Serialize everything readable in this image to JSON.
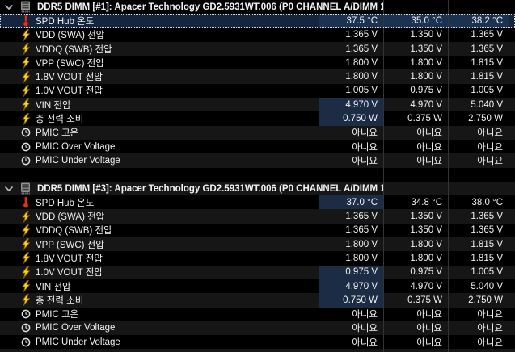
{
  "theme": {
    "bg": "#000000",
    "row_alt_bg": "#161616",
    "grid_line": "#343434",
    "text": "#f2f2f2",
    "selected_row_bg": "#13263e",
    "selected_value_cell_bg": "#1b3251",
    "changed_value_cell_bg": "#1b2c44",
    "selection_border": "#dadada",
    "bolt_color": "#ffd21e",
    "thermometer_color": "#e03222",
    "clock_color": "#e2e2e2",
    "chevron_color": "#b8b8b8",
    "dimm_icon_color": "#8f8f8f"
  },
  "sections": [
    {
      "title": "DDR5 DIMM [#1]: Apacer Technology GD2.5931WT.006 (P0 CHANNEL A/DIMM 1)",
      "collapse_icon": "chevron-down",
      "header_icon": "dimm-module",
      "rows": [
        {
          "icon": "thermometer",
          "label": "SPD Hub 온도",
          "current": "37.5 °C",
          "min": "35.0 °C",
          "max": "38.2 °C",
          "selected": true
        },
        {
          "icon": "bolt",
          "label": "VDD (SWA) 전압",
          "current": "1.365 V",
          "min": "1.350 V",
          "max": "1.365 V"
        },
        {
          "icon": "bolt",
          "label": "VDDQ (SWB) 전압",
          "current": "1.365 V",
          "min": "1.350 V",
          "max": "1.365 V"
        },
        {
          "icon": "bolt",
          "label": "VPP (SWC) 전압",
          "current": "1.800 V",
          "min": "1.800 V",
          "max": "1.815 V"
        },
        {
          "icon": "bolt",
          "label": "1.8V VOUT 전압",
          "current": "1.800 V",
          "min": "1.800 V",
          "max": "1.815 V"
        },
        {
          "icon": "bolt",
          "label": "1.0V VOUT 전압",
          "current": "1.005 V",
          "min": "0.975 V",
          "max": "1.005 V"
        },
        {
          "icon": "bolt",
          "label": "VIN 전압",
          "current": "4.970 V",
          "min": "4.970 V",
          "max": "5.040 V",
          "current_changed": true
        },
        {
          "icon": "bolt",
          "label": "총 전력 소비",
          "current": "0.750 W",
          "min": "0.375 W",
          "max": "2.750 W",
          "current_changed": true
        },
        {
          "icon": "clock",
          "label": "PMIC 고온",
          "current": "아니요",
          "min": "아니요",
          "max": "아니요"
        },
        {
          "icon": "clock",
          "label": "PMIC Over Voltage",
          "current": "아니요",
          "min": "아니요",
          "max": "아니요"
        },
        {
          "icon": "clock",
          "label": "PMIC Under Voltage",
          "current": "아니요",
          "min": "아니요",
          "max": "아니요"
        }
      ]
    },
    {
      "title": "DDR5 DIMM [#3]: Apacer Technology GD2.5931WT.006 (P0 CHANNEL A/DIMM 1)",
      "collapse_icon": "chevron-down",
      "header_icon": "dimm-module",
      "rows": [
        {
          "icon": "thermometer",
          "label": "SPD Hub 온도",
          "current": "37.0 °C",
          "min": "34.8 °C",
          "max": "38.0 °C",
          "current_changed": true
        },
        {
          "icon": "bolt",
          "label": "VDD (SWA) 전압",
          "current": "1.365 V",
          "min": "1.350 V",
          "max": "1.365 V"
        },
        {
          "icon": "bolt",
          "label": "VDDQ (SWB) 전압",
          "current": "1.365 V",
          "min": "1.350 V",
          "max": "1.365 V"
        },
        {
          "icon": "bolt",
          "label": "VPP (SWC) 전압",
          "current": "1.800 V",
          "min": "1.800 V",
          "max": "1.815 V"
        },
        {
          "icon": "bolt",
          "label": "1.8V VOUT 전압",
          "current": "1.800 V",
          "min": "1.800 V",
          "max": "1.815 V"
        },
        {
          "icon": "bolt",
          "label": "1.0V VOUT 전압",
          "current": "0.975 V",
          "min": "0.975 V",
          "max": "1.005 V",
          "current_changed": true
        },
        {
          "icon": "bolt",
          "label": "VIN 전압",
          "current": "4.970 V",
          "min": "4.970 V",
          "max": "5.040 V",
          "current_changed": true
        },
        {
          "icon": "bolt",
          "label": "총 전력 소비",
          "current": "0.750 W",
          "min": "0.375 W",
          "max": "2.750 W",
          "current_changed": true
        },
        {
          "icon": "clock",
          "label": "PMIC 고온",
          "current": "아니요",
          "min": "아니요",
          "max": "아니요"
        },
        {
          "icon": "clock",
          "label": "PMIC Over Voltage",
          "current": "아니요",
          "min": "아니요",
          "max": "아니요"
        },
        {
          "icon": "clock",
          "label": "PMIC Under Voltage",
          "current": "아니요",
          "min": "아니요",
          "max": "아니요"
        }
      ]
    }
  ]
}
